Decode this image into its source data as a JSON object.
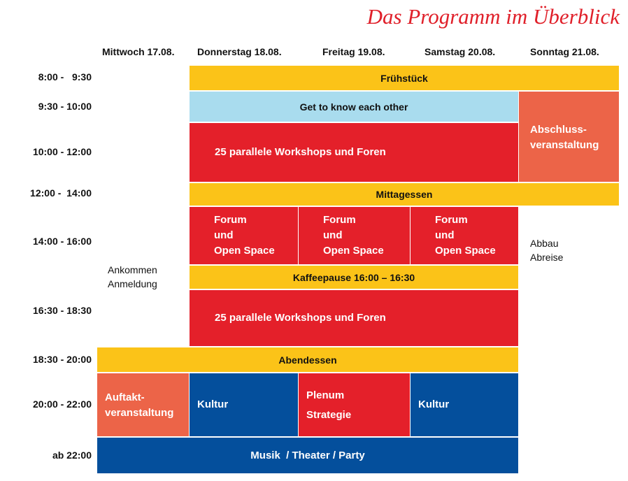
{
  "title": "Das Programm im Überblick",
  "days": [
    "Mittwoch 17.08.",
    "Donnerstag 18.08.",
    "Freitag 19.08.",
    "Samstag 20.08.",
    "Sonntag 21.08."
  ],
  "times": [
    "8:00 -   9:30",
    "9:30 - 10:00",
    "10:00 - 12:00",
    "12:00 -  14:00",
    "14:00 - 16:00",
    "16:30 - 18:30",
    "18:30 - 20:00",
    "20:00 - 22:00",
    "ab 22:00"
  ],
  "events": {
    "fruehstueck": "Frühstück",
    "get_to_know": "Get to know each other",
    "workshops_1": "25 parallele Workshops und Foren",
    "abschluss_1": "Abschluss-",
    "abschluss_2": "veranstaltung",
    "mittagessen": "Mittagessen",
    "forum_1": "Forum",
    "forum_2": "und",
    "forum_3": "Open Space",
    "abbau": "Abbau",
    "abreise": "Abreise",
    "ankommen": "Ankommen",
    "anmeldung": "Anmeldung",
    "kaffeepause": "Kaffeepause 16:00 – 16:30",
    "workshops_2": "25 parallele Workshops und Foren",
    "abendessen": "Abendessen",
    "auftakt_1": "Auftakt-",
    "auftakt_2": "veranstaltung",
    "kultur": "Kultur",
    "plenum": "Plenum",
    "strategie": "Strategie",
    "musik": "Musik  / Theater / Party"
  },
  "colors": {
    "red": "#e4202a",
    "yellow": "#fbc318",
    "light_blue": "#a9dcee",
    "orange": "#ec6448",
    "dark_blue": "#044f9c",
    "title_red": "#e0202a"
  }
}
